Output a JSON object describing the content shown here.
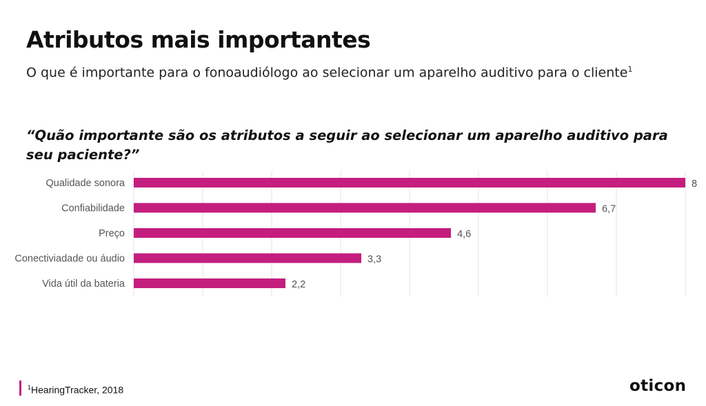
{
  "header": {
    "title": "Atributos mais importantes",
    "subtitle": "O que é importante para o fonoaudiólogo ao selecionar um aparelho auditivo para o cliente",
    "subtitle_ref": "1"
  },
  "question": "“Quão importante são os atributos a seguir ao selecionar um aparelho auditivo para seu paciente?”",
  "chart_data": {
    "type": "bar",
    "orientation": "horizontal",
    "categories": [
      "Qualidade sonora",
      "Confiabilidade",
      "Preço",
      "Conectiviadade ou áudio",
      "Vida útil da bateria"
    ],
    "values": [
      8,
      6.7,
      4.6,
      3.3,
      2.2
    ],
    "value_labels": [
      "8",
      "6,7",
      "4,6",
      "3,3",
      "2,2"
    ],
    "xlim": [
      0,
      8
    ],
    "grid": true,
    "bar_color": "#c41e7e",
    "grid_color": "#e3e3e3"
  },
  "footer": {
    "source_ref": "1",
    "source": "HearingTracker, 2018",
    "accent_color": "#c41e7e",
    "logo": "oticon"
  }
}
